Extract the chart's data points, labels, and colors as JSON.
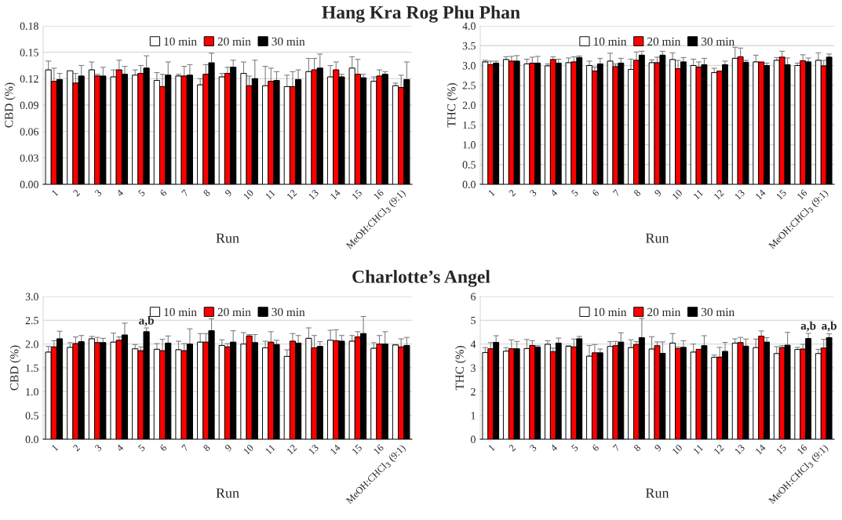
{
  "chart_data": [
    {
      "type": "bar",
      "title": "Hang Kra Rog Phu Phan",
      "xlabel": "Run",
      "ylabel": "CBD (%)",
      "categories": [
        "1",
        "2",
        "3",
        "4",
        "5",
        "6",
        "7",
        "8",
        "9",
        "10",
        "11",
        "12",
        "13",
        "14",
        "15",
        "16",
        "MeOH:CHCl$_{3}$ (9:1)"
      ],
      "ylim": [
        0,
        0.18
      ],
      "yticks": [
        {
          "value": 0,
          "label": "0.00"
        },
        {
          "value": 0.03,
          "label": "0.03"
        },
        {
          "value": 0.06,
          "label": "0.06"
        },
        {
          "value": 0.09,
          "label": "0.09"
        },
        {
          "value": 0.12,
          "label": "0.12"
        },
        {
          "value": 0.15,
          "label": "0.15"
        },
        {
          "value": 0.18,
          "label": "0.18"
        }
      ],
      "grid": "y",
      "legend": "top",
      "series": [
        {
          "name": "10 min",
          "color": "#ffffff",
          "values": [
            0.13,
            0.129,
            0.13,
            0.122,
            0.124,
            0.118,
            0.123,
            0.113,
            0.122,
            0.126,
            0.112,
            0.111,
            0.128,
            0.122,
            0.132,
            0.117,
            0.112
          ],
          "errors": [
            [
              0.13,
              0.14
            ],
            null,
            [
              0.13,
              0.139
            ],
            [
              0.122,
              0.13
            ],
            [
              0.124,
              0.13
            ],
            [
              0.118,
              0.127
            ],
            [
              0.123,
              0.125
            ],
            [
              0.113,
              0.12
            ],
            [
              0.122,
              0.126
            ],
            [
              0.126,
              0.139
            ],
            [
              0.112,
              0.134
            ],
            [
              0.111,
              0.124
            ],
            [
              0.128,
              0.143
            ],
            [
              0.122,
              0.135
            ],
            [
              0.132,
              0.145
            ],
            [
              0.117,
              0.122
            ],
            [
              0.112,
              0.115
            ]
          ]
        },
        {
          "name": "20 min",
          "color": "#ff0000",
          "values": [
            0.117,
            0.115,
            0.123,
            0.13,
            0.126,
            0.111,
            0.123,
            0.125,
            0.126,
            0.112,
            0.117,
            0.111,
            0.13,
            0.13,
            0.125,
            0.123,
            0.11
          ],
          "errors": [
            [
              0.117,
              0.132
            ],
            [
              0.115,
              0.126
            ],
            [
              0.123,
              0.125
            ],
            [
              0.13,
              0.141
            ],
            [
              0.126,
              0.135
            ],
            [
              0.111,
              0.125
            ],
            [
              0.123,
              0.134
            ],
            [
              0.125,
              0.136
            ],
            [
              0.126,
              0.133
            ],
            [
              0.112,
              0.123
            ],
            [
              0.117,
              0.132
            ],
            [
              0.111,
              0.128
            ],
            [
              0.13,
              0.143
            ],
            [
              0.13,
              0.139
            ],
            [
              0.125,
              0.142
            ],
            [
              0.123,
              0.13
            ],
            [
              0.11,
              0.124
            ]
          ]
        },
        {
          "name": "30 min",
          "color": "#000000",
          "values": [
            0.119,
            0.123,
            0.123,
            0.125,
            0.132,
            0.124,
            0.124,
            0.138,
            0.133,
            0.12,
            0.118,
            0.119,
            0.132,
            0.122,
            0.121,
            0.125,
            0.119
          ],
          "errors": [
            [
              0.119,
              0.126
            ],
            [
              0.123,
              0.135
            ],
            [
              0.123,
              0.133
            ],
            [
              0.125,
              0.134
            ],
            [
              0.132,
              0.146
            ],
            [
              0.124,
              0.139
            ],
            [
              0.124,
              0.136
            ],
            [
              0.138,
              0.149
            ],
            [
              0.133,
              0.141
            ],
            [
              0.12,
              0.141
            ],
            [
              0.118,
              0.128
            ],
            [
              0.119,
              0.13
            ],
            [
              0.132,
              0.148
            ],
            [
              0.122,
              0.125
            ],
            [
              0.121,
              0.125
            ],
            [
              0.125,
              0.128
            ],
            [
              0.119,
              0.139
            ]
          ]
        }
      ]
    },
    {
      "type": "bar",
      "xlabel": "Run",
      "ylabel": "THC (%)",
      "categories": [
        "1",
        "2",
        "3",
        "4",
        "5",
        "6",
        "7",
        "8",
        "9",
        "10",
        "11",
        "12",
        "13",
        "14",
        "15",
        "16",
        "MeOH:CHCl$_{3}$ (9:1)"
      ],
      "ylim": [
        0,
        4.0
      ],
      "yticks": [
        {
          "value": 0,
          "label": "0.0"
        },
        {
          "value": 0.5,
          "label": "0.5"
        },
        {
          "value": 1.0,
          "label": "1.0"
        },
        {
          "value": 1.5,
          "label": "1.5"
        },
        {
          "value": 2.0,
          "label": "2.0"
        },
        {
          "value": 2.5,
          "label": "2.5"
        },
        {
          "value": 3.0,
          "label": "3.0"
        },
        {
          "value": 3.5,
          "label": "3.5"
        },
        {
          "value": 4.0,
          "label": "4.0"
        }
      ],
      "grid": "y",
      "legend": "top",
      "series": [
        {
          "name": "10 min",
          "color": "#ffffff",
          "values": [
            3.09,
            3.15,
            3.04,
            2.99,
            3.07,
            3.0,
            3.11,
            2.9,
            3.07,
            3.15,
            3.0,
            2.82,
            3.18,
            3.09,
            3.13,
            3.0,
            3.13
          ],
          "errors": [
            [
              3.09,
              3.13
            ],
            [
              3.15,
              3.22
            ],
            [
              3.04,
              3.16
            ],
            [
              2.99,
              3.04
            ],
            [
              3.07,
              3.19
            ],
            [
              3.0,
              3.11
            ],
            [
              3.11,
              3.31
            ],
            [
              2.9,
              3.16
            ],
            [
              3.07,
              3.14
            ],
            [
              3.15,
              3.32
            ],
            [
              3.0,
              3.16
            ],
            [
              2.82,
              2.93
            ],
            [
              3.18,
              3.46
            ],
            [
              3.09,
              3.26
            ],
            [
              3.13,
              3.2
            ],
            [
              3.0,
              3.06
            ],
            [
              3.13,
              3.32
            ]
          ]
        },
        {
          "name": "20 min",
          "color": "#ff0000",
          "values": [
            3.02,
            3.11,
            3.06,
            3.15,
            3.09,
            2.86,
            2.97,
            3.13,
            3.07,
            2.92,
            2.96,
            2.86,
            3.22,
            3.09,
            3.21,
            3.12,
            2.99
          ],
          "errors": [
            [
              3.02,
              3.11
            ],
            [
              3.11,
              3.23
            ],
            [
              3.06,
              3.21
            ],
            [
              3.15,
              3.22
            ],
            [
              3.09,
              3.22
            ],
            [
              2.86,
              2.96
            ],
            [
              2.97,
              3.04
            ],
            [
              3.13,
              3.34
            ],
            [
              3.07,
              3.21
            ],
            [
              2.92,
              3.13
            ],
            [
              2.96,
              3.09
            ],
            null,
            [
              3.22,
              3.44
            ],
            null,
            [
              3.21,
              3.36
            ],
            [
              3.12,
              3.27
            ],
            [
              2.99,
              3.13
            ]
          ]
        },
        {
          "name": "30 min",
          "color": "#000000",
          "values": [
            3.06,
            3.11,
            3.06,
            3.06,
            3.2,
            3.04,
            3.06,
            3.26,
            3.26,
            3.09,
            3.02,
            3.02,
            3.08,
            3.0,
            3.02,
            3.09,
            3.21
          ],
          "errors": [
            [
              3.06,
              3.11
            ],
            [
              3.11,
              3.25
            ],
            [
              3.06,
              3.23
            ],
            [
              3.06,
              3.16
            ],
            [
              3.2,
              3.24
            ],
            [
              3.04,
              3.18
            ],
            [
              3.06,
              3.18
            ],
            [
              3.26,
              3.36
            ],
            [
              3.26,
              3.36
            ],
            [
              3.09,
              3.2
            ],
            [
              3.02,
              3.18
            ],
            [
              3.02,
              3.11
            ],
            [
              3.08,
              3.13
            ],
            [
              3.0,
              3.06
            ],
            [
              3.02,
              3.19
            ],
            [
              3.09,
              3.19
            ],
            [
              3.21,
              3.29
            ]
          ]
        }
      ]
    },
    {
      "type": "bar",
      "title": "Charlotte’s Angel",
      "xlabel": "Run",
      "ylabel": "CBD (%)",
      "categories": [
        "1",
        "2",
        "3",
        "4",
        "5",
        "6",
        "7",
        "8",
        "9",
        "10",
        "11",
        "12",
        "13",
        "14",
        "15",
        "16",
        "MeOH:CHCl$_{3}$ (9:1)"
      ],
      "ylim": [
        0,
        3.0
      ],
      "yticks": [
        {
          "value": 0,
          "label": "0.0"
        },
        {
          "value": 0.5,
          "label": "0.5"
        },
        {
          "value": 1.0,
          "label": "1.0"
        },
        {
          "value": 1.5,
          "label": "1.5"
        },
        {
          "value": 2.0,
          "label": "2.0"
        },
        {
          "value": 2.5,
          "label": "2.5"
        },
        {
          "value": 3.0,
          "label": "3.0"
        }
      ],
      "grid": "y",
      "legend": "top",
      "annotations": [
        {
          "text": "a,b",
          "x": "5",
          "y": 2.36
        }
      ],
      "series": [
        {
          "name": "10 min",
          "color": "#ffffff",
          "values": [
            1.83,
            1.93,
            2.11,
            2.04,
            1.9,
            1.89,
            1.88,
            2.04,
            1.97,
            2.0,
            1.92,
            1.74,
            2.12,
            2.08,
            2.06,
            1.91,
            1.98
          ],
          "errors": [
            [
              1.83,
              1.95
            ],
            [
              1.93,
              2.03
            ],
            [
              2.11,
              2.16
            ],
            [
              2.04,
              2.23
            ],
            [
              1.9,
              1.99
            ],
            [
              1.89,
              2.01
            ],
            [
              1.88,
              2.06
            ],
            [
              2.04,
              2.22
            ],
            [
              1.97,
              2.09
            ],
            [
              2.0,
              2.24
            ],
            [
              1.92,
              2.06
            ],
            [
              1.74,
              1.88
            ],
            [
              2.12,
              2.34
            ],
            [
              2.08,
              2.29
            ],
            [
              2.06,
              2.18
            ],
            [
              1.91,
              2.03
            ],
            [
              1.98,
              1.99
            ]
          ]
        },
        {
          "name": "20 min",
          "color": "#ff0000",
          "values": [
            1.94,
            2.01,
            2.03,
            2.08,
            1.86,
            1.86,
            1.86,
            2.04,
            1.94,
            2.17,
            2.04,
            2.06,
            1.92,
            2.07,
            2.15,
            2.0,
            1.94
          ],
          "errors": [
            [
              1.94,
              2.07
            ],
            [
              2.01,
              2.15
            ],
            [
              2.03,
              2.14
            ],
            [
              2.08,
              2.15
            ],
            [
              1.86,
              1.94
            ],
            [
              1.86,
              2.1
            ],
            [
              1.86,
              2.01
            ],
            [
              2.04,
              2.22
            ],
            [
              1.94,
              2.01
            ],
            [
              2.17,
              2.2
            ],
            [
              2.04,
              2.26
            ],
            [
              2.06,
              2.22
            ],
            [
              1.92,
              2.18
            ],
            [
              2.07,
              2.3
            ],
            [
              2.15,
              2.26
            ],
            [
              2.0,
              2.18
            ],
            [
              1.94,
              2.11
            ]
          ]
        },
        {
          "name": "30 min",
          "color": "#000000",
          "values": [
            2.11,
            2.05,
            2.03,
            2.19,
            2.26,
            2.02,
            2.0,
            2.28,
            2.04,
            2.03,
            1.99,
            2.02,
            1.95,
            2.06,
            2.22,
            2.0,
            1.97
          ],
          "errors": [
            [
              2.11,
              2.27
            ],
            [
              2.05,
              2.18
            ],
            [
              2.03,
              2.12
            ],
            [
              2.19,
              2.44
            ],
            [
              2.26,
              2.34
            ],
            [
              2.02,
              2.17
            ],
            [
              2.0,
              2.32
            ],
            [
              2.28,
              2.53
            ],
            [
              2.04,
              2.28
            ],
            [
              2.03,
              2.2
            ],
            [
              1.99,
              2.08
            ],
            [
              2.02,
              2.18
            ],
            [
              1.95,
              2.05
            ],
            [
              2.06,
              2.18
            ],
            [
              2.22,
              2.58
            ],
            [
              2.0,
              2.26
            ],
            [
              1.97,
              2.14
            ]
          ]
        }
      ]
    },
    {
      "type": "bar",
      "xlabel": "Run",
      "ylabel": "THC (%)",
      "categories": [
        "1",
        "2",
        "3",
        "4",
        "5",
        "6",
        "7",
        "8",
        "9",
        "10",
        "11",
        "12",
        "13",
        "14",
        "15",
        "16",
        "MeOH:CHCl$_{3}$ (9:1)"
      ],
      "ylim": [
        0,
        6
      ],
      "yticks": [
        0,
        1,
        2,
        3,
        4,
        5,
        6
      ],
      "grid": "y",
      "legend": "top",
      "annotations": [
        {
          "text": "a,b",
          "x": "16",
          "y": 4.5
        },
        {
          "text": "a,b",
          "x": "MeOH:CHCl$_{3}$ (9:1)",
          "y": 4.5
        }
      ],
      "series": [
        {
          "name": "10 min",
          "color": "#ffffff",
          "values": [
            3.64,
            3.7,
            3.81,
            3.99,
            3.9,
            3.49,
            3.9,
            3.85,
            3.79,
            4.04,
            3.66,
            3.44,
            4.04,
            3.85,
            3.6,
            3.77,
            3.6
          ],
          "errors": [
            [
              3.64,
              3.85
            ],
            [
              3.7,
              3.85
            ],
            [
              3.81,
              4.19
            ],
            [
              3.99,
              4.14
            ],
            [
              3.9,
              3.93
            ],
            [
              3.49,
              3.94
            ],
            [
              3.9,
              4.1
            ],
            [
              3.85,
              4.18
            ],
            [
              3.79,
              4.31
            ],
            [
              4.04,
              4.44
            ],
            [
              3.66,
              4.0
            ],
            [
              3.44,
              3.54
            ],
            [
              4.04,
              4.22
            ],
            [
              3.85,
              4.21
            ],
            [
              3.6,
              3.89
            ],
            [
              3.77,
              3.86
            ],
            [
              3.6,
              3.78
            ]
          ]
        },
        {
          "name": "20 min",
          "color": "#ff0000",
          "values": [
            3.8,
            3.8,
            3.94,
            3.68,
            3.88,
            3.63,
            3.93,
            3.98,
            3.93,
            3.81,
            3.78,
            3.45,
            4.06,
            4.33,
            3.85,
            3.79,
            3.83
          ],
          "errors": [
            [
              3.8,
              4.06
            ],
            [
              3.8,
              4.18
            ],
            [
              3.94,
              4.14
            ],
            [
              3.68,
              3.83
            ],
            [
              3.88,
              4.21
            ],
            [
              3.63,
              3.98
            ],
            [
              3.93,
              4.11
            ],
            [
              3.98,
              4.1
            ],
            [
              3.93,
              4.09
            ],
            [
              3.81,
              3.88
            ],
            null,
            [
              3.45,
              3.86
            ],
            [
              4.06,
              4.28
            ],
            [
              4.33,
              4.55
            ],
            [
              3.85,
              3.93
            ],
            [
              3.79,
              3.99
            ],
            [
              3.83,
              4.2
            ]
          ]
        },
        {
          "name": "30 min",
          "color": "#000000",
          "values": [
            4.07,
            3.8,
            3.87,
            4.04,
            4.22,
            3.63,
            4.08,
            4.27,
            3.61,
            3.86,
            3.93,
            3.69,
            3.91,
            4.08,
            3.95,
            4.23,
            4.27
          ],
          "errors": [
            [
              4.07,
              4.35
            ],
            [
              3.8,
              4.11
            ],
            [
              3.87,
              3.93
            ],
            [
              4.04,
              4.25
            ],
            [
              4.22,
              4.32
            ],
            [
              3.63,
              3.79
            ],
            [
              4.08,
              4.47
            ],
            [
              4.27,
              5.08
            ],
            [
              3.61,
              4.09
            ],
            [
              3.86,
              4.14
            ],
            [
              3.93,
              4.35
            ],
            [
              3.69,
              4.07
            ],
            [
              3.91,
              4.21
            ],
            [
              4.08,
              4.27
            ],
            [
              3.95,
              4.49
            ],
            [
              4.23,
              4.45
            ],
            [
              4.27,
              4.43
            ]
          ]
        }
      ]
    }
  ]
}
